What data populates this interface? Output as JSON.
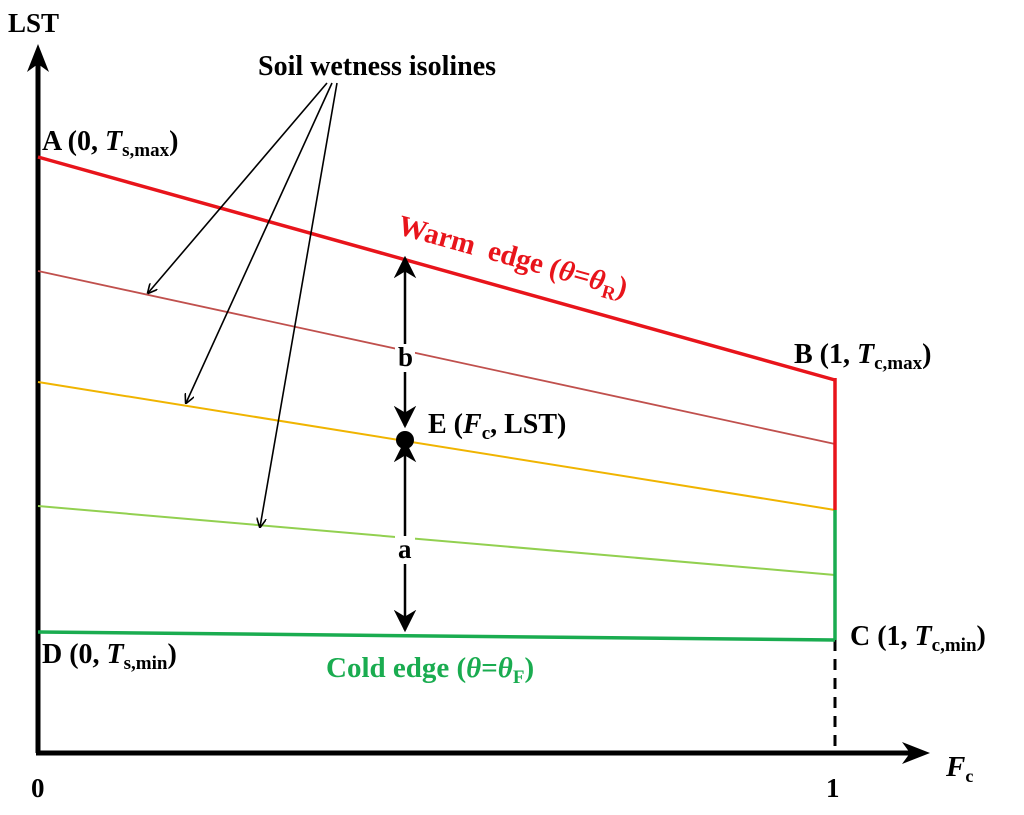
{
  "colors": {
    "axis": "#000000",
    "warm_edge": "#e8141b",
    "isoline_1": "#c0504d",
    "isoline_2": "#f0b400",
    "isoline_3": "#92d050",
    "cold_edge": "#1aac50",
    "arrow": "#000000"
  },
  "axes": {
    "y_label": "LST",
    "x_label_main": "F",
    "x_label_sub": "c",
    "origin_label": "0",
    "x_end_label": "1"
  },
  "annotation": {
    "isolines_label": "Soil wetness isolines"
  },
  "points": {
    "A": {
      "pre": "A (0, ",
      "var": "T",
      "sub": "s,max",
      "post": ")"
    },
    "B": {
      "pre": "B (1, ",
      "var": "T",
      "sub": "c,max",
      "post": ")"
    },
    "C": {
      "pre": "C (1, ",
      "var": "T",
      "sub": "c,min",
      "post": ")"
    },
    "D": {
      "pre": "D (0, ",
      "var": "T",
      "sub": "s,min",
      "post": ")"
    },
    "E": {
      "pre": "E (",
      "var": "F",
      "sub": "c",
      "post": ", LST)"
    }
  },
  "edges": {
    "warm": {
      "pre": "Warm  edge (",
      "theta": "θ",
      "eq": "=",
      "theta2": "θ",
      "sub": "R",
      "post": ")"
    },
    "cold": {
      "pre": "Cold edge (",
      "theta": "θ",
      "eq": "=",
      "theta2": "θ",
      "sub": "F",
      "post": ")"
    }
  },
  "distances": {
    "b": "b",
    "a": "a"
  }
}
